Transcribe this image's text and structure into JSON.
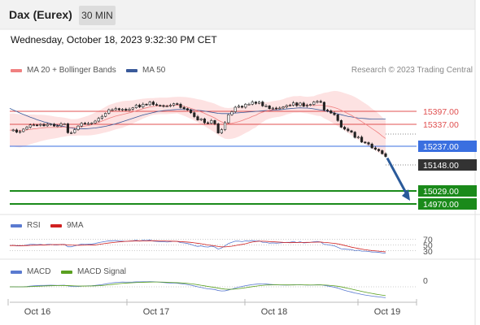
{
  "header": {
    "title": "Dax (Eurex)",
    "timeframe": "30 MIN"
  },
  "datetime": "Wednesday, October 18, 2023 9:32:30 PM CET",
  "legend": {
    "ma20": "MA 20 + Bollinger Bands",
    "ma50": "MA 50",
    "copyright": "Research © 2023 Trading Central",
    "rsi": "RSI",
    "rsi_ma": "9MA",
    "macd": "MACD",
    "macd_signal": "MACD Signal"
  },
  "colors": {
    "ma20": "#f08080",
    "ma50": "#3a5a9a",
    "bollinger_fill": "#fde2e2",
    "resistance": "#e05050",
    "pivot": "#3a6fe0",
    "support": "#1a8a1a",
    "arrow": "#2a5a9a",
    "rsi": "#5a7ad0",
    "rsi_ma": "#d02020",
    "macd": "#5a7ad0",
    "macd_signal": "#5aa020"
  },
  "levels": [
    {
      "label": "15397.00",
      "kind": "resistance"
    },
    {
      "label": "15337.00",
      "kind": "resistance"
    },
    {
      "label": "15237.00",
      "kind": "pivot"
    },
    {
      "label": "15148.00",
      "kind": "last"
    },
    {
      "label": "15029.00",
      "kind": "support"
    },
    {
      "label": "14970.00",
      "kind": "support"
    }
  ],
  "rsi_ticks": [
    "70",
    "50",
    "30"
  ],
  "macd_ticks": [
    "0"
  ],
  "chart_data": {
    "type": "line",
    "title": "Dax (Eurex)",
    "xlabels": [
      "Oct 16",
      "Oct 17",
      "Oct 18",
      "Oct 19"
    ],
    "ylim": [
      14950,
      15420
    ],
    "price": [
      15241,
      15244,
      15236,
      15238,
      15247,
      15254,
      15262,
      15262,
      15261,
      15264,
      15259,
      15264,
      15265,
      15258,
      15259,
      15266,
      15266,
      15234,
      15234,
      15245,
      15258,
      15268,
      15266,
      15267,
      15269,
      15276,
      15286,
      15293,
      15304,
      15317,
      15317,
      15321,
      15317,
      15319,
      15315,
      15319,
      15324,
      15334,
      15327,
      15337,
      15335,
      15345,
      15336,
      15333,
      15332,
      15330,
      15330,
      15333,
      15339,
      15337,
      15325,
      15321,
      15316,
      15306,
      15292,
      15280,
      15284,
      15270,
      15268,
      15278,
      15266,
      15233,
      15245,
      15270,
      15299,
      15310,
      15326,
      15330,
      15326,
      15337,
      15337,
      15345,
      15340,
      15345,
      15331,
      15331,
      15321,
      15323,
      15322,
      15323,
      15327,
      15332,
      15333,
      15342,
      15332,
      15341,
      15330,
      15333,
      15336,
      15345,
      15347,
      15344,
      15316,
      15313,
      15305,
      15299,
      15278,
      15254,
      15247,
      15241,
      15236,
      15217,
      15218,
      15200,
      15198,
      15193,
      15179,
      15174,
      15169,
      15158,
      15148
    ],
    "ma20": [
      15243,
      15244,
      15242,
      15241,
      15242,
      15244,
      15246,
      15248,
      15249,
      15251,
      15252,
      15253,
      15253,
      15253,
      15253,
      15254,
      15254,
      15254,
      15253,
      15253,
      15254,
      15256,
      15258,
      15260,
      15263,
      15267,
      15271,
      15276,
      15281,
      15286,
      15290,
      15294,
      15297,
      15300,
      15303,
      15306,
      15309,
      15313,
      15317,
      15321,
      15324,
      15327,
      15329,
      15330,
      15331,
      15331,
      15331,
      15332,
      15333,
      15334,
      15332,
      15329,
      15326,
      15322,
      15318,
      15313,
      15309,
      15304,
      15298,
      15293,
      15287,
      15279,
      15273,
      15268,
      15267,
      15268,
      15271,
      15274,
      15278,
      15283,
      15287,
      15293,
      15297,
      15304,
      15308,
      15312,
      15315,
      15318,
      15320,
      15322,
      15325,
      15330,
      15333,
      15336,
      15336,
      15337,
      15335,
      15334,
      15333,
      15332,
      15333,
      15334,
      15332,
      15330,
      15328,
      15325,
      15321,
      15315,
      15309,
      15303,
      15297,
      15289,
      15282,
      15274,
      15266,
      15258,
      15249,
      15241,
      15232,
      15222,
      15213
    ],
    "ma50": [
      15322,
      15316,
      15311,
      15305,
      15300,
      15295,
      15290,
      15286,
      15281,
      15277,
      15273,
      15270,
      15266,
      15263,
      15261,
      15258,
      15256,
      15253,
      15251,
      15249,
      15248,
      15248,
      15248,
      15249,
      15250,
      15251,
      15253,
      15255,
      15257,
      15260,
      15263,
      15266,
      15270,
      15274,
      15278,
      15282,
      15286,
      15290,
      15294,
      15298,
      15301,
      15304,
      15307,
      15310,
      15312,
      15314,
      15315,
      15316,
      15317,
      15318,
      15318,
      15318,
      15318,
      15317,
      15316,
      15315,
      15314,
      15312,
      15310,
      15308,
      15306,
      15304,
      15303,
      15303,
      15303,
      15304,
      15305,
      15306,
      15307,
      15308,
      15309,
      15310,
      15311,
      15312,
      15313,
      15314,
      15314,
      15315,
      15316,
      15317,
      15318,
      15320,
      15321,
      15322,
      15323,
      15324,
      15323,
      15323,
      15322,
      15320,
      15318,
      15316,
      15314,
      15311,
      15308,
      15305,
      15302,
      15299,
      15296,
      15293,
      15291,
      15289,
      15287,
      15286,
      15285,
      15284,
      15283,
      15283,
      15283,
      15283,
      15283
    ],
    "bb_width": [
      60,
      60,
      60,
      60,
      58,
      56,
      54,
      52,
      50,
      48,
      46,
      44,
      42,
      40,
      38,
      36,
      34,
      32,
      30,
      30,
      30,
      32,
      34,
      36,
      38,
      40,
      42,
      44,
      46,
      48,
      48,
      48,
      48,
      48,
      46,
      44,
      42,
      40,
      38,
      36,
      34,
      32,
      30,
      30,
      30,
      30,
      30,
      30,
      30,
      30,
      32,
      34,
      36,
      38,
      40,
      42,
      44,
      46,
      48,
      50,
      52,
      54,
      55,
      56,
      56,
      56,
      56,
      54,
      52,
      50,
      48,
      46,
      44,
      40,
      36,
      32,
      30,
      30,
      30,
      30,
      30,
      30,
      30,
      30,
      30,
      30,
      30,
      30,
      32,
      34,
      38,
      40,
      46,
      50,
      55,
      60,
      63,
      66,
      68,
      70,
      72,
      74,
      74,
      74,
      74,
      74,
      72,
      72,
      70,
      68,
      66
    ],
    "projection": [
      15148,
      14975
    ],
    "rsi": {
      "ylim": [
        0,
        100
      ],
      "series": [
        48,
        49,
        47,
        47,
        48,
        50,
        52,
        52,
        51,
        52,
        50,
        52,
        52,
        50,
        50,
        52,
        52,
        44,
        44,
        47,
        50,
        53,
        52,
        53,
        53,
        55,
        58,
        60,
        62,
        64,
        64,
        65,
        63,
        63,
        62,
        63,
        64,
        66,
        63,
        66,
        65,
        67,
        63,
        62,
        61,
        61,
        60,
        61,
        63,
        62,
        58,
        57,
        55,
        52,
        48,
        45,
        47,
        44,
        43,
        46,
        43,
        36,
        40,
        47,
        55,
        59,
        63,
        63,
        61,
        64,
        63,
        65,
        63,
        64,
        59,
        59,
        56,
        57,
        56,
        57,
        58,
        59,
        59,
        62,
        58,
        61,
        57,
        58,
        59,
        61,
        62,
        60,
        52,
        51,
        49,
        47,
        42,
        37,
        36,
        35,
        34,
        31,
        32,
        29,
        29,
        28,
        26,
        26,
        25,
        23,
        22
      ]
    },
    "macd": {
      "ylim": [
        -40,
        40
      ]
    }
  }
}
